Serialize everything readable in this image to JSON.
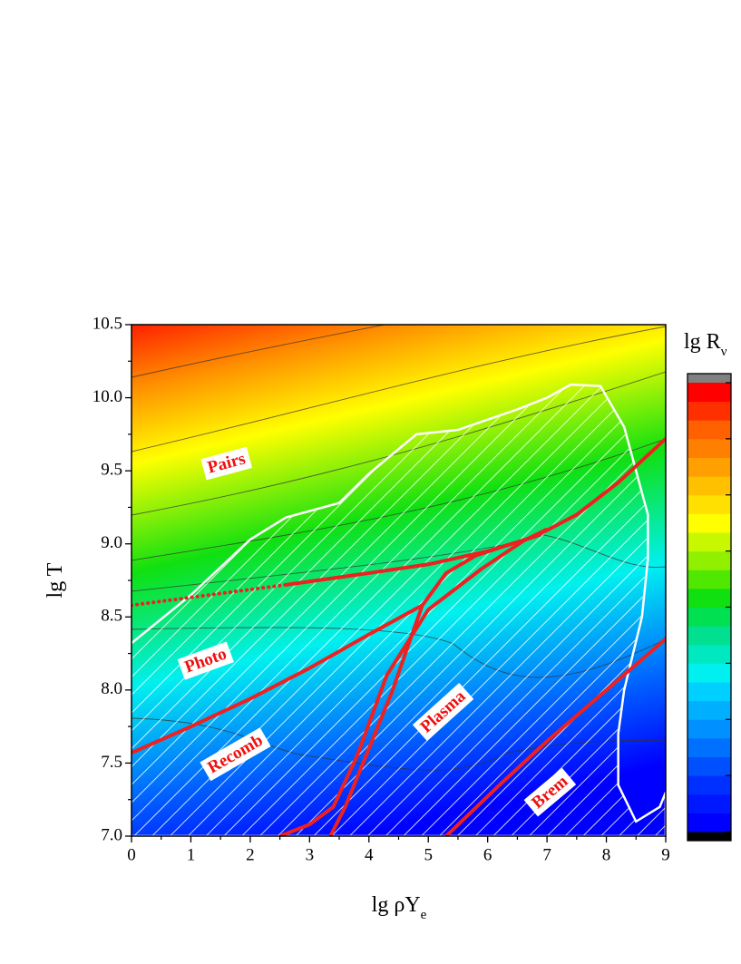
{
  "chart_data": {
    "type": "contour",
    "x_label": "lg ρY",
    "x_label_sub": "e",
    "y_label": "lg T",
    "colorbar_title": "lg R",
    "colorbar_title_sub": "ν",
    "xlim": [
      0,
      9
    ],
    "ylim": [
      7.0,
      10.5
    ],
    "xticks": [
      0,
      1,
      2,
      3,
      4,
      5,
      6,
      7,
      8,
      9
    ],
    "yticks": [
      {
        "value": 7.0,
        "label": "7.0"
      },
      7.5,
      {
        "value": 8.0,
        "label": "8.0"
      },
      8.5,
      {
        "value": 9.0,
        "label": "9.0"
      },
      9.5,
      {
        "value": 10.0,
        "label": "10.0"
      },
      10.5
    ],
    "colormap": [
      "#000000",
      "#0000ff",
      "#0018ff",
      "#0030ff",
      "#0050ff",
      "#0070ff",
      "#0090ff",
      "#00b0ff",
      "#00d0ff",
      "#00f0f0",
      "#00e8c0",
      "#00e090",
      "#00e050",
      "#10e010",
      "#50e800",
      "#90f000",
      "#c8f800",
      "#ffff00",
      "#ffe000",
      "#ffc000",
      "#ffa000",
      "#ff8000",
      "#ff6000",
      "#ff3000",
      "#ff0000",
      "#808080"
    ],
    "boundary_color": "#ee2020",
    "boundaries": [
      {
        "style": "dotted",
        "x": [
          0,
          2.6
        ],
        "y": [
          8.58,
          8.72
        ]
      },
      {
        "style": "solid",
        "x": [
          2.6,
          4,
          5,
          6,
          6.8,
          7.5,
          8.2,
          9
        ],
        "y": [
          8.72,
          8.8,
          8.86,
          8.95,
          9.05,
          9.2,
          9.42,
          9.72
        ]
      },
      {
        "style": "solid",
        "x": [
          0,
          1,
          2,
          3,
          4,
          4.9
        ],
        "y": [
          7.57,
          7.75,
          7.94,
          8.15,
          8.38,
          8.58
        ]
      },
      {
        "style": "solid",
        "x": [
          3.35,
          3.6,
          4.0,
          4.4,
          4.7,
          4.9,
          5.3,
          5.8,
          6.4
        ],
        "y": [
          7.0,
          7.2,
          7.6,
          8.0,
          8.35,
          8.58,
          8.8,
          8.92,
          9.0
        ]
      },
      {
        "style": "solid",
        "x": [
          2.5,
          3.0,
          3.4,
          3.8,
          4.3,
          5.0,
          5.9,
          6.6,
          7.0
        ],
        "y": [
          7.0,
          7.08,
          7.2,
          7.55,
          8.1,
          8.55,
          8.83,
          9.02,
          9.1
        ]
      },
      {
        "style": "solid",
        "x": [
          5.3,
          6.2,
          7,
          8,
          9
        ],
        "y": [
          7.0,
          7.35,
          7.65,
          8.0,
          8.35
        ]
      }
    ],
    "shaded_region": {
      "x": [
        0,
        1,
        2,
        2.6,
        3.5,
        4,
        4.8,
        5.5,
        6.5,
        7,
        7.4,
        7.9,
        8.3,
        8.5,
        8.7,
        8.7,
        8.6,
        8.3,
        8.2,
        8.2,
        8.5,
        8.9,
        9,
        9,
        0
      ],
      "y": [
        8.32,
        8.65,
        9.03,
        9.18,
        9.28,
        9.48,
        9.75,
        9.78,
        9.92,
        10.0,
        10.09,
        10.08,
        9.8,
        9.5,
        9.2,
        8.9,
        8.5,
        8.0,
        7.7,
        7.35,
        7.1,
        7.2,
        7.3,
        7.0,
        7.0
      ]
    },
    "annotations": [
      "Pairs",
      "Photo",
      "Recomb",
      "Plasma",
      "Brem"
    ]
  }
}
